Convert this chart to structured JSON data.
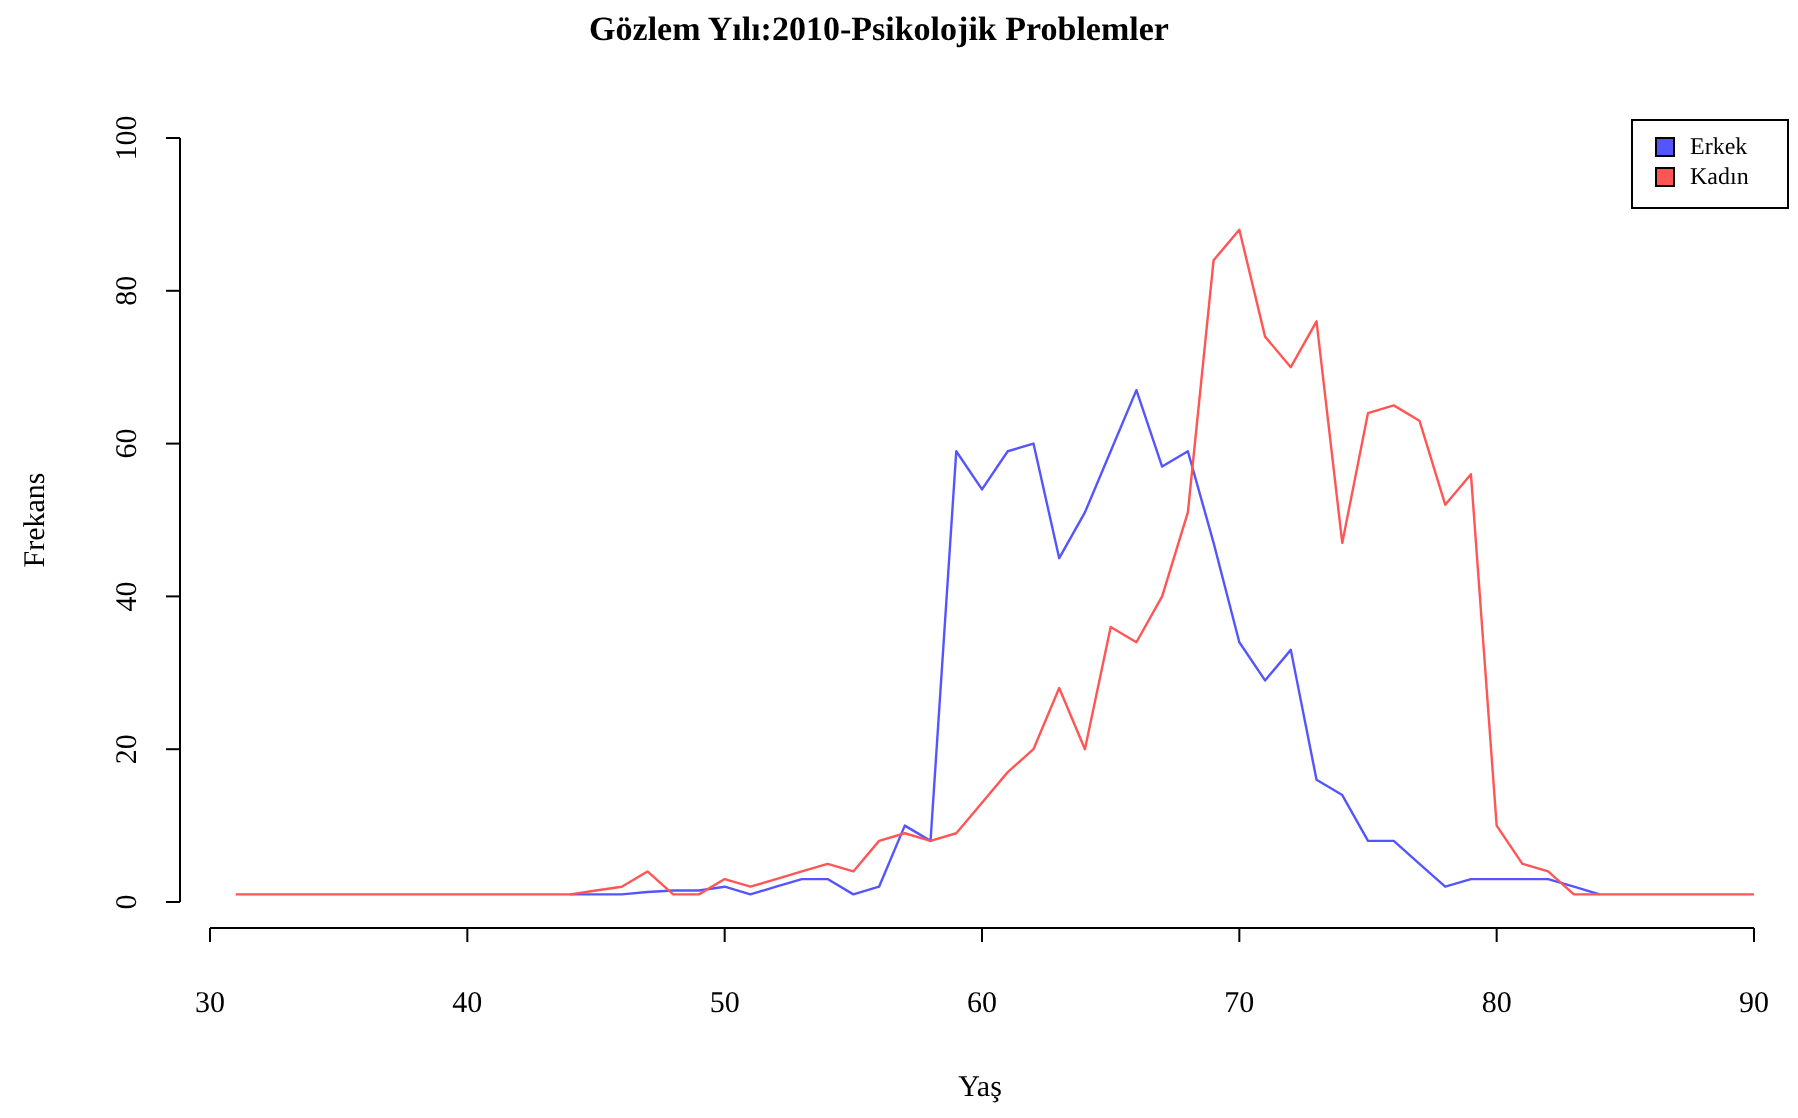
{
  "chart_data": {
    "type": "line",
    "title": "Gözlem Yılı:2010-Psikolojik Problemler",
    "xlabel": "Yaş",
    "ylabel": "Frekans",
    "x": [
      31,
      32,
      33,
      34,
      35,
      36,
      37,
      38,
      39,
      40,
      41,
      42,
      43,
      44,
      45,
      46,
      47,
      48,
      49,
      50,
      51,
      52,
      53,
      54,
      55,
      56,
      57,
      58,
      59,
      60,
      61,
      62,
      63,
      64,
      65,
      66,
      67,
      68,
      69,
      70,
      71,
      72,
      73,
      74,
      75,
      76,
      77,
      78,
      79,
      80,
      81,
      82,
      83,
      84,
      85,
      86,
      87,
      88,
      89,
      90
    ],
    "series": [
      {
        "name": "Erkek",
        "color": "#5555ff",
        "values": [
          null,
          null,
          null,
          null,
          null,
          null,
          null,
          null,
          null,
          null,
          null,
          null,
          null,
          1,
          1,
          1,
          1.3,
          1.5,
          1.5,
          2,
          1,
          2,
          3,
          3,
          1,
          2,
          10,
          8,
          59,
          54,
          59,
          60,
          45,
          51,
          59,
          67,
          57,
          59,
          47,
          34,
          29,
          33,
          16,
          14,
          8,
          8,
          5,
          2,
          3,
          3,
          3,
          3,
          2,
          1,
          null,
          null,
          null,
          null,
          null,
          null
        ]
      },
      {
        "name": "Kadın",
        "color": "#ff5555",
        "values": [
          1,
          1,
          1,
          1,
          1,
          1,
          1,
          1,
          1,
          1,
          1,
          1,
          1,
          1,
          1.5,
          2,
          4,
          1,
          1,
          3,
          2,
          3,
          4,
          5,
          4,
          8,
          9,
          8,
          9,
          13,
          17,
          20,
          28,
          20,
          36,
          34,
          40,
          51,
          84,
          88,
          74,
          70,
          76,
          47,
          64,
          65,
          63,
          52,
          56,
          10,
          5,
          4,
          1,
          1,
          1,
          1,
          1,
          1,
          1,
          1
        ]
      }
    ],
    "xlim": [
      30,
      90
    ],
    "ylim": [
      0,
      100
    ],
    "xticks": [
      30,
      40,
      50,
      60,
      70,
      80,
      90
    ],
    "yticks": [
      0,
      20,
      40,
      60,
      80,
      100
    ],
    "grid": false,
    "legend": "top right",
    "marker": "none",
    "line_style": "solid"
  }
}
